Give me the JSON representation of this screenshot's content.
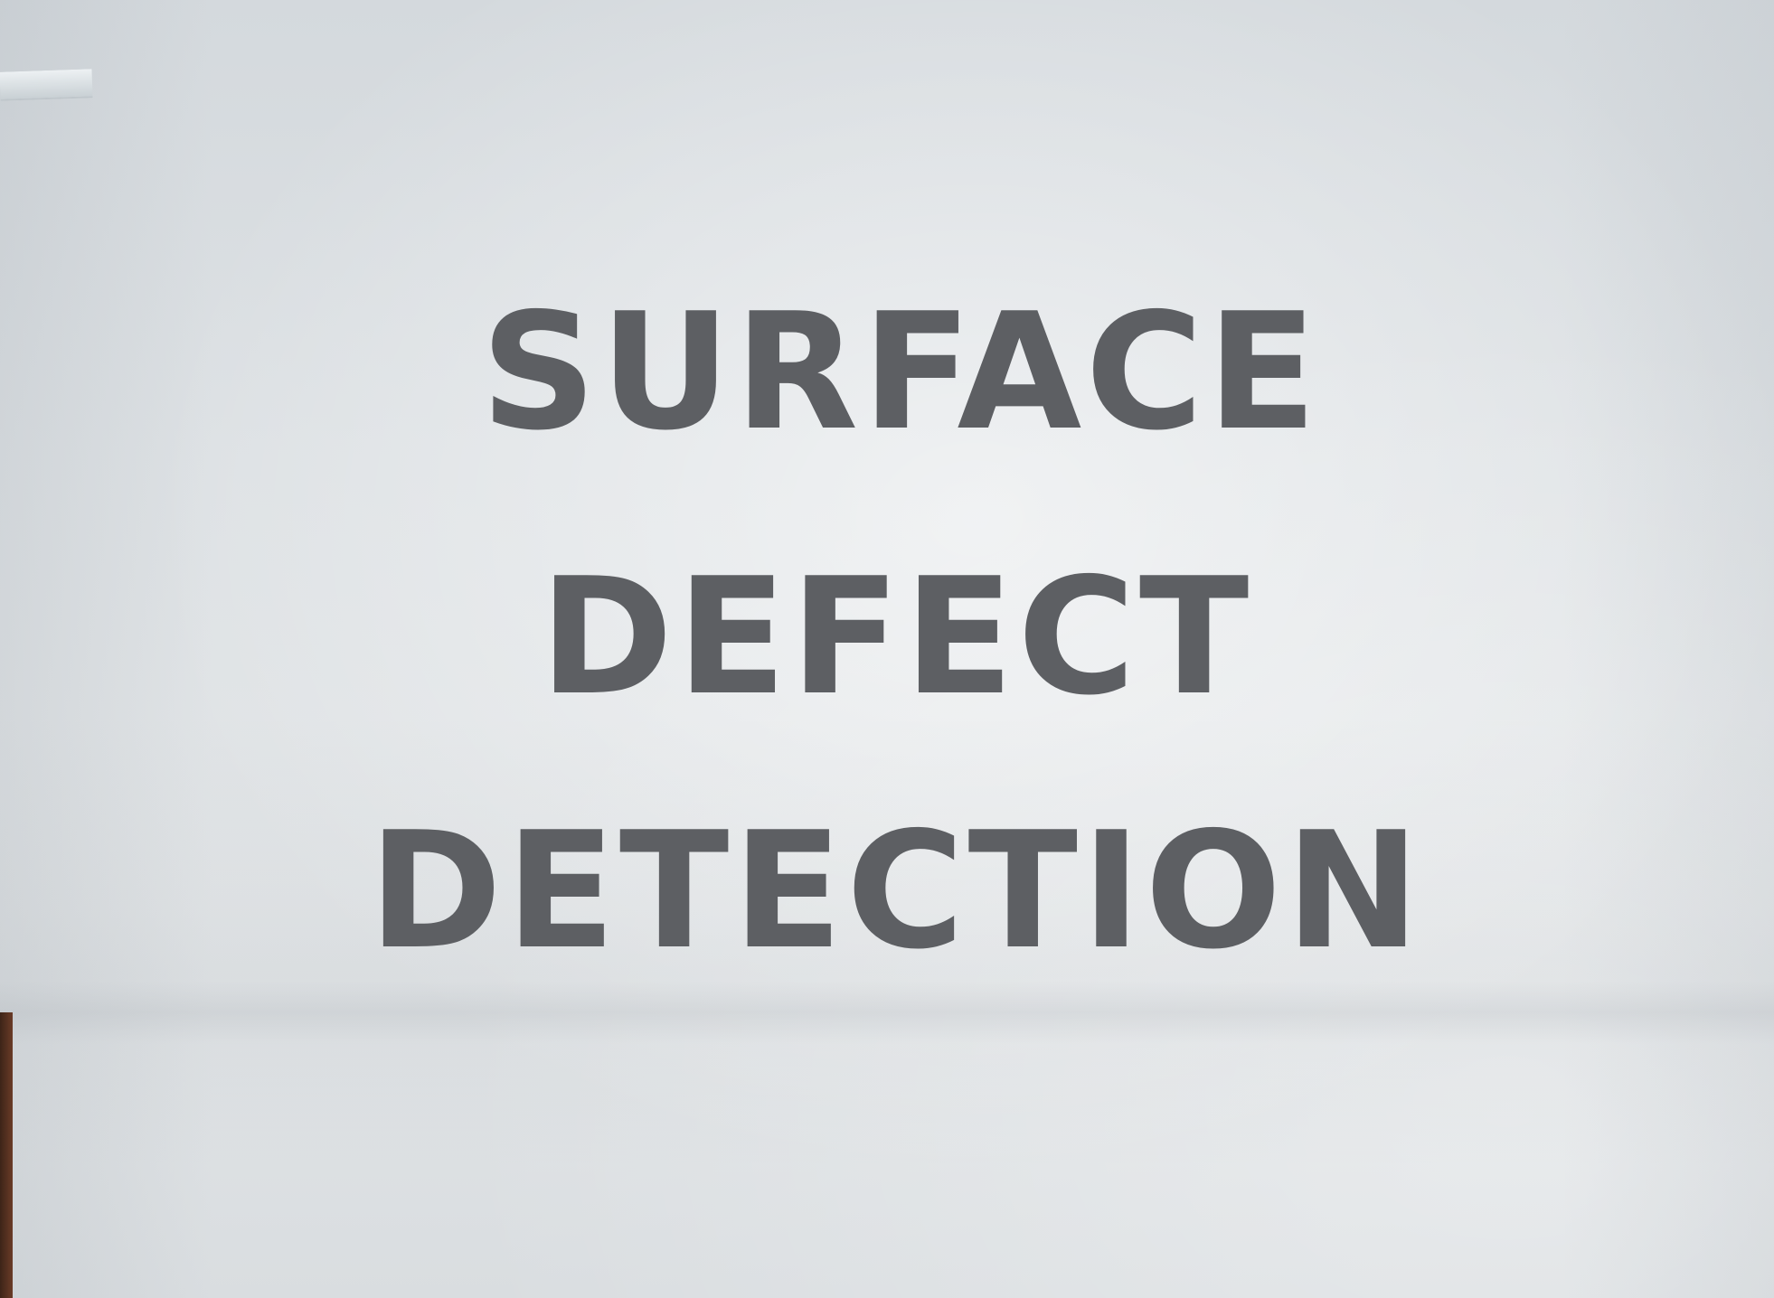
{
  "sign": {
    "line1": "SURFACE",
    "line2": "DEFECT",
    "line3": "DETECTION"
  },
  "colors": {
    "text": "#5d5f63",
    "paper": "#dde1e4",
    "wall": "#5a3222"
  }
}
